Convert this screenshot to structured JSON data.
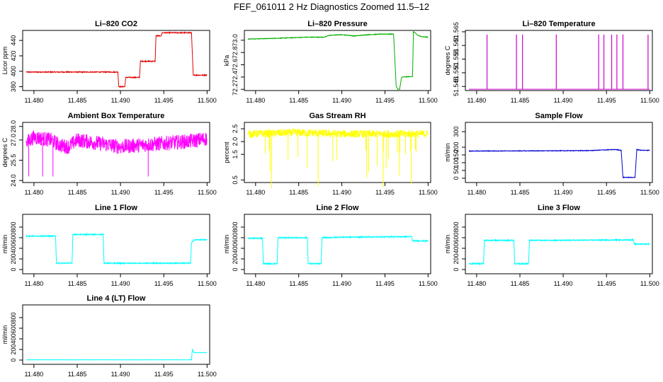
{
  "title": "FEF_061011  2 Hz Diagnostics Zoomed 11.5–12",
  "chart_data": [
    {
      "type": "line",
      "title": "Li–820 CO2",
      "ylabel": "Licor ppm",
      "color": "#e00000",
      "xlim": [
        11.4787,
        11.5003
      ],
      "ylim": [
        375,
        453
      ],
      "xticks": [
        "11.480",
        "11.485",
        "11.490",
        "11.495",
        "11.500"
      ],
      "yticks": [
        "380",
        "400",
        "420",
        "440",
        "460"
      ],
      "noise": 0.6,
      "spikes": [],
      "series": [
        {
          "x": [
            11.4791,
            11.4897,
            11.4898,
            11.4905,
            11.4906,
            11.4913,
            11.4914,
            11.4922,
            11.4923,
            11.493,
            11.4931,
            11.494,
            11.4941,
            11.4947,
            11.4948,
            11.4964,
            11.4982,
            11.4984,
            11.5
          ],
          "y": [
            399,
            399,
            380,
            380,
            392,
            392,
            392,
            392,
            413,
            413,
            413,
            413,
            446,
            446,
            450,
            450,
            450,
            395,
            395
          ]
        }
      ]
    },
    {
      "type": "line",
      "title": "Li–820 Pressure",
      "ylabel": "kPa",
      "color": "#00b000",
      "xlim": [
        11.4787,
        11.5003
      ],
      "ylim": [
        72.18,
        73.16
      ],
      "xticks": [
        "11.480",
        "11.485",
        "11.490",
        "11.495",
        "11.500"
      ],
      "yticks": [
        "72.2",
        "72.4",
        "72.6",
        "72.8",
        "73.0"
      ],
      "noise": 0.005,
      "spikes": [],
      "series": [
        {
          "x": [
            11.4791,
            11.482,
            11.486,
            11.488,
            11.4885,
            11.49,
            11.4915,
            11.493,
            11.4945,
            11.496,
            11.4963,
            11.4965,
            11.4967,
            11.4969,
            11.497,
            11.4982,
            11.4983,
            11.4985,
            11.4988,
            11.4992,
            11.5
          ],
          "y": [
            73.02,
            73.03,
            73.05,
            73.05,
            73.08,
            73.09,
            73.07,
            73.09,
            73.1,
            73.1,
            72.25,
            72.2,
            72.2,
            72.38,
            72.4,
            72.41,
            73.14,
            73.12,
            73.08,
            73.06,
            73.05
          ]
        }
      ]
    },
    {
      "type": "line",
      "title": "Li–820 Temperature",
      "ylabel": "degrees C",
      "color": "#d000d0",
      "xlim": [
        11.4787,
        11.5003
      ],
      "ylim": [
        51.5435,
        51.5655
      ],
      "xticks": [
        "11.480",
        "11.485",
        "11.490",
        "11.495",
        "11.500"
      ],
      "yticks": [
        "51.545",
        "51.550",
        "51.555",
        "51.560",
        "51.565"
      ],
      "noise": 0,
      "spikes": [
        11.4812,
        11.4846,
        11.4853,
        11.4892,
        11.4941,
        11.4947,
        11.4956,
        11.4962,
        11.4969,
        11.4998
      ],
      "spike_top": 51.564,
      "series": [
        {
          "x": [
            11.4791,
            11.5
          ],
          "y": [
            51.544,
            51.544
          ]
        }
      ]
    },
    {
      "type": "line",
      "title": "Ambient Box Temperature",
      "ylabel": "degrees C",
      "color": "#ff00ff",
      "xlim": [
        11.4787,
        11.5003
      ],
      "ylim": [
        23.85,
        28.3
      ],
      "xticks": [
        "11.480",
        "11.485",
        "11.490",
        "11.495",
        "11.500"
      ],
      "yticks": [
        "24.0",
        "25.5",
        "27.0",
        "28.0"
      ],
      "noise": 0.55,
      "spikes": [],
      "series": [
        {
          "x": [
            11.4791,
            11.48,
            11.481,
            11.482,
            11.483,
            11.484,
            11.485,
            11.486,
            11.487,
            11.488,
            11.49,
            11.492,
            11.494,
            11.496,
            11.498,
            11.5
          ],
          "y": [
            26.8,
            27.2,
            27.1,
            27.0,
            26.6,
            26.5,
            27.0,
            26.9,
            26.8,
            26.7,
            26.5,
            26.6,
            26.7,
            26.8,
            26.9,
            27.1
          ]
        }
      ]
    },
    {
      "type": "line",
      "title": "Gas Stream RH",
      "ylabel": "percent",
      "color": "#ffff00",
      "xlim": [
        11.4787,
        11.5003
      ],
      "ylim": [
        0.4,
        2.75
      ],
      "xticks": [
        "11.480",
        "11.485",
        "11.490",
        "11.495",
        "11.500"
      ],
      "yticks": [
        "0.5",
        "1.5",
        "2.0",
        "2.5"
      ],
      "noise": 0.15,
      "spikes": [],
      "series": [
        {
          "x": [
            11.4791,
            11.485,
            11.49,
            11.495,
            11.5
          ],
          "y": [
            2.3,
            2.35,
            2.3,
            2.3,
            2.3
          ]
        }
      ]
    },
    {
      "type": "line",
      "title": "Sample Flow",
      "ylabel": "ml/min",
      "color": "#0000d0",
      "xlim": [
        11.4787,
        11.5003
      ],
      "ylim": [
        -28,
        360
      ],
      "xticks": [
        "11.480",
        "11.485",
        "11.490",
        "11.495",
        "11.500"
      ],
      "yticks": [
        "0",
        "50",
        "100",
        "150",
        "200",
        "300"
      ],
      "noise": 2,
      "spikes": [],
      "series": [
        {
          "x": [
            11.4791,
            11.49,
            11.493,
            11.496,
            11.4967,
            11.4969,
            11.4983,
            11.4985,
            11.499,
            11.5
          ],
          "y": [
            175,
            177,
            178,
            185,
            180,
            5,
            5,
            185,
            180,
            180
          ]
        }
      ]
    },
    {
      "type": "line",
      "title": "Line 1 Flow",
      "ylabel": "ml/min",
      "color": "#00ffff",
      "xlim": [
        11.4787,
        11.5003
      ],
      "ylim": [
        -80,
        1040
      ],
      "xticks": [
        "11.480",
        "11.485",
        "11.490",
        "11.495",
        "11.500"
      ],
      "yticks": [
        "0",
        "200",
        "400",
        "600",
        "800"
      ],
      "noise": 10,
      "spikes": [],
      "series": [
        {
          "x": [
            11.4791,
            11.4825,
            11.4826,
            11.4844,
            11.4845,
            11.488,
            11.4881,
            11.4981,
            11.4982,
            11.4985,
            11.5
          ],
          "y": [
            630,
            630,
            120,
            120,
            660,
            660,
            120,
            120,
            500,
            560,
            560
          ]
        }
      ]
    },
    {
      "type": "line",
      "title": "Line 2 Flow",
      "ylabel": "ml/min",
      "color": "#00ffff",
      "xlim": [
        11.4787,
        11.5003
      ],
      "ylim": [
        -80,
        1040
      ],
      "xticks": [
        "11.480",
        "11.485",
        "11.490",
        "11.495",
        "11.500"
      ],
      "yticks": [
        "0",
        "200",
        "400",
        "600",
        "800"
      ],
      "noise": 10,
      "spikes": [],
      "series": [
        {
          "x": [
            11.4791,
            11.4808,
            11.4809,
            11.4825,
            11.4826,
            11.486,
            11.4861,
            11.4876,
            11.4877,
            11.49,
            11.4981,
            11.4982,
            11.5
          ],
          "y": [
            590,
            590,
            110,
            110,
            600,
            600,
            110,
            110,
            600,
            610,
            620,
            540,
            540
          ]
        }
      ]
    },
    {
      "type": "line",
      "title": "Line 3 Flow",
      "ylabel": "ml/min",
      "color": "#00ffff",
      "xlim": [
        11.4787,
        11.5003
      ],
      "ylim": [
        -80,
        1040
      ],
      "xticks": [
        "11.480",
        "11.485",
        "11.490",
        "11.495",
        "11.500"
      ],
      "yticks": [
        "0",
        "200",
        "400",
        "600",
        "800"
      ],
      "noise": 10,
      "spikes": [],
      "series": [
        {
          "x": [
            11.4791,
            11.4808,
            11.4809,
            11.4843,
            11.4844,
            11.486,
            11.4861,
            11.49,
            11.4981,
            11.4982,
            11.5
          ],
          "y": [
            110,
            110,
            550,
            550,
            110,
            110,
            550,
            550,
            560,
            480,
            480
          ]
        }
      ]
    },
    {
      "type": "line",
      "title": "Line 4 (LT) Flow",
      "ylabel": "ml/min",
      "color": "#00ffff",
      "xlim": [
        11.4787,
        11.5003
      ],
      "ylim": [
        -80,
        1040
      ],
      "xticks": [
        "11.480",
        "11.485",
        "11.490",
        "11.495",
        "11.500"
      ],
      "yticks": [
        "0",
        "200",
        "400",
        "600",
        "800"
      ],
      "noise": 2,
      "spikes": [],
      "series": [
        {
          "x": [
            11.4791,
            11.4982,
            11.4983,
            11.4985,
            11.5
          ],
          "y": [
            5,
            5,
            200,
            140,
            140
          ]
        }
      ]
    }
  ]
}
